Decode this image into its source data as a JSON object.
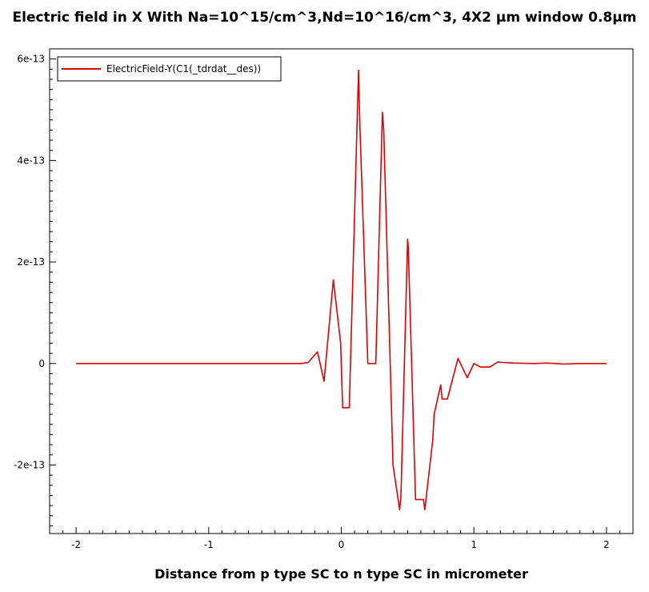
{
  "chart_data": {
    "type": "line",
    "title": "Electric field in X With Na=10^15/cm^3,Nd=10^16/cm^3, 4X2 μm window 0.8μm",
    "xlabel": "Distance from p type SC to n type SC in micrometer",
    "ylabel": "",
    "xlim": [
      -2.2,
      2.2
    ],
    "ylim": [
      -3.35e-13,
      6.2e-13
    ],
    "x_ticks": [
      {
        "value": -2,
        "label": "-2"
      },
      {
        "value": -1,
        "label": "-1"
      },
      {
        "value": 0,
        "label": "0"
      },
      {
        "value": 1,
        "label": "1"
      },
      {
        "value": 2,
        "label": "2"
      }
    ],
    "y_ticks": [
      {
        "value": -2e-13,
        "label": "-2e-13"
      },
      {
        "value": 0,
        "label": "0"
      },
      {
        "value": 2e-13,
        "label": "2e-13"
      },
      {
        "value": 4e-13,
        "label": "4e-13"
      },
      {
        "value": 6e-13,
        "label": "6e-13"
      }
    ],
    "grid": false,
    "legend_position": "top-left",
    "series": [
      {
        "name": "ElectricField-Y(C1(_tdrdat__des))",
        "color": "#e00000",
        "x": [
          -2.0,
          -1.5,
          -1.0,
          -0.5,
          -0.3,
          -0.25,
          -0.18,
          -0.13,
          -0.06,
          -0.005,
          0.01,
          0.06,
          0.13,
          0.14,
          0.2,
          0.26,
          0.31,
          0.32,
          0.39,
          0.44,
          0.45,
          0.5,
          0.505,
          0.56,
          0.62,
          0.63,
          0.69,
          0.7,
          0.75,
          0.76,
          0.8,
          0.88,
          0.95,
          1.0,
          1.05,
          1.12,
          1.18,
          1.22,
          1.3,
          1.45,
          1.55,
          1.68,
          1.8,
          2.0
        ],
        "y": [
          0,
          0,
          0,
          0,
          0,
          2e-15,
          2.3e-14,
          -3.5e-14,
          1.65e-13,
          4e-14,
          -8.7e-14,
          -8.7e-14,
          5.78e-13,
          4.7e-13,
          0,
          0,
          4.95e-13,
          4.6e-13,
          -2e-13,
          -2.88e-13,
          -2.6e-13,
          2.45e-13,
          2.3e-13,
          -2.68e-13,
          -2.68e-13,
          -2.88e-13,
          -1.5e-13,
          -1e-13,
          -4.2e-14,
          -7e-14,
          -7e-14,
          1e-14,
          -2.8e-14,
          0,
          -7e-15,
          -7e-15,
          3e-15,
          2e-15,
          1e-15,
          0,
          1e-15,
          -1e-15,
          0,
          0
        ]
      }
    ]
  }
}
